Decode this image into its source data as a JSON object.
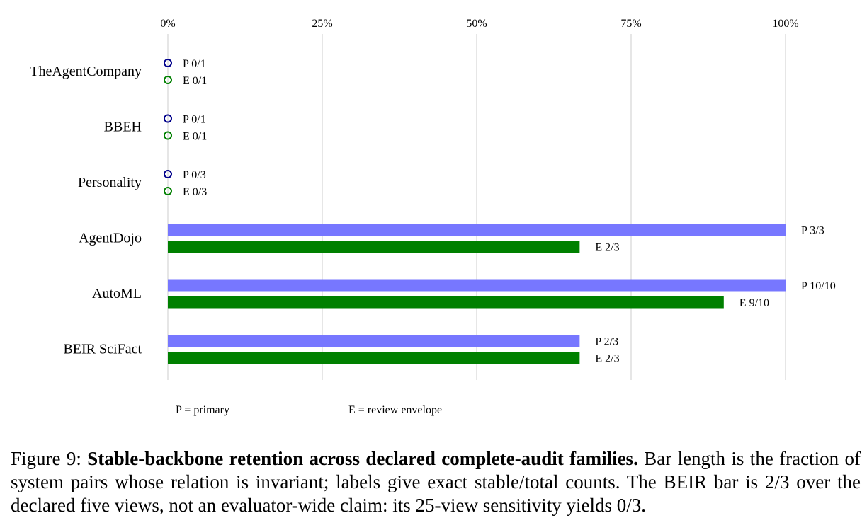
{
  "chart_data": {
    "type": "bar",
    "orientation": "horizontal",
    "xlim": [
      0,
      1
    ],
    "x_ticks": [
      {
        "value": 0,
        "label": "0%"
      },
      {
        "value": 0.25,
        "label": "25%"
      },
      {
        "value": 0.5,
        "label": "50%"
      },
      {
        "value": 0.75,
        "label": "75%"
      },
      {
        "value": 1,
        "label": "100%"
      }
    ],
    "grid": true,
    "categories": [
      "TheAgentCompany",
      "BBEH",
      "Personality",
      "AgentDojo",
      "AutoML",
      "BEIR SciFact"
    ],
    "series": [
      {
        "key": "P",
        "color": "#7777ff",
        "marker_color": "#00008b",
        "values": [
          0,
          0,
          0,
          1.0,
          1.0,
          0.6667
        ],
        "labels": [
          "P 0/1",
          "P 0/1",
          "P 0/3",
          "P 3/3",
          "P 10/10",
          "P 2/3"
        ]
      },
      {
        "key": "E",
        "color": "#008000",
        "marker_color": "#008000",
        "values": [
          0,
          0,
          0,
          0.6667,
          0.9,
          0.6667
        ],
        "labels": [
          "E 0/1",
          "E 0/1",
          "E 0/3",
          "E 2/3",
          "E 9/10",
          "E 2/3"
        ]
      }
    ],
    "legend": [
      {
        "text": "P = primary",
        "color": "#00008b"
      },
      {
        "text": "E = review envelope",
        "color": "#008000"
      }
    ]
  },
  "caption": {
    "prefix": "Figure 9: ",
    "bold": "Stable-backbone retention across declared complete-audit families.",
    "rest": " Bar length is the fraction of system pairs whose relation is invariant; labels give exact stable/total counts. The BEIR bar is 2/3 over the declared five views, not an evaluator-wide claim: its 25-view sensitivity yields 0/3."
  }
}
